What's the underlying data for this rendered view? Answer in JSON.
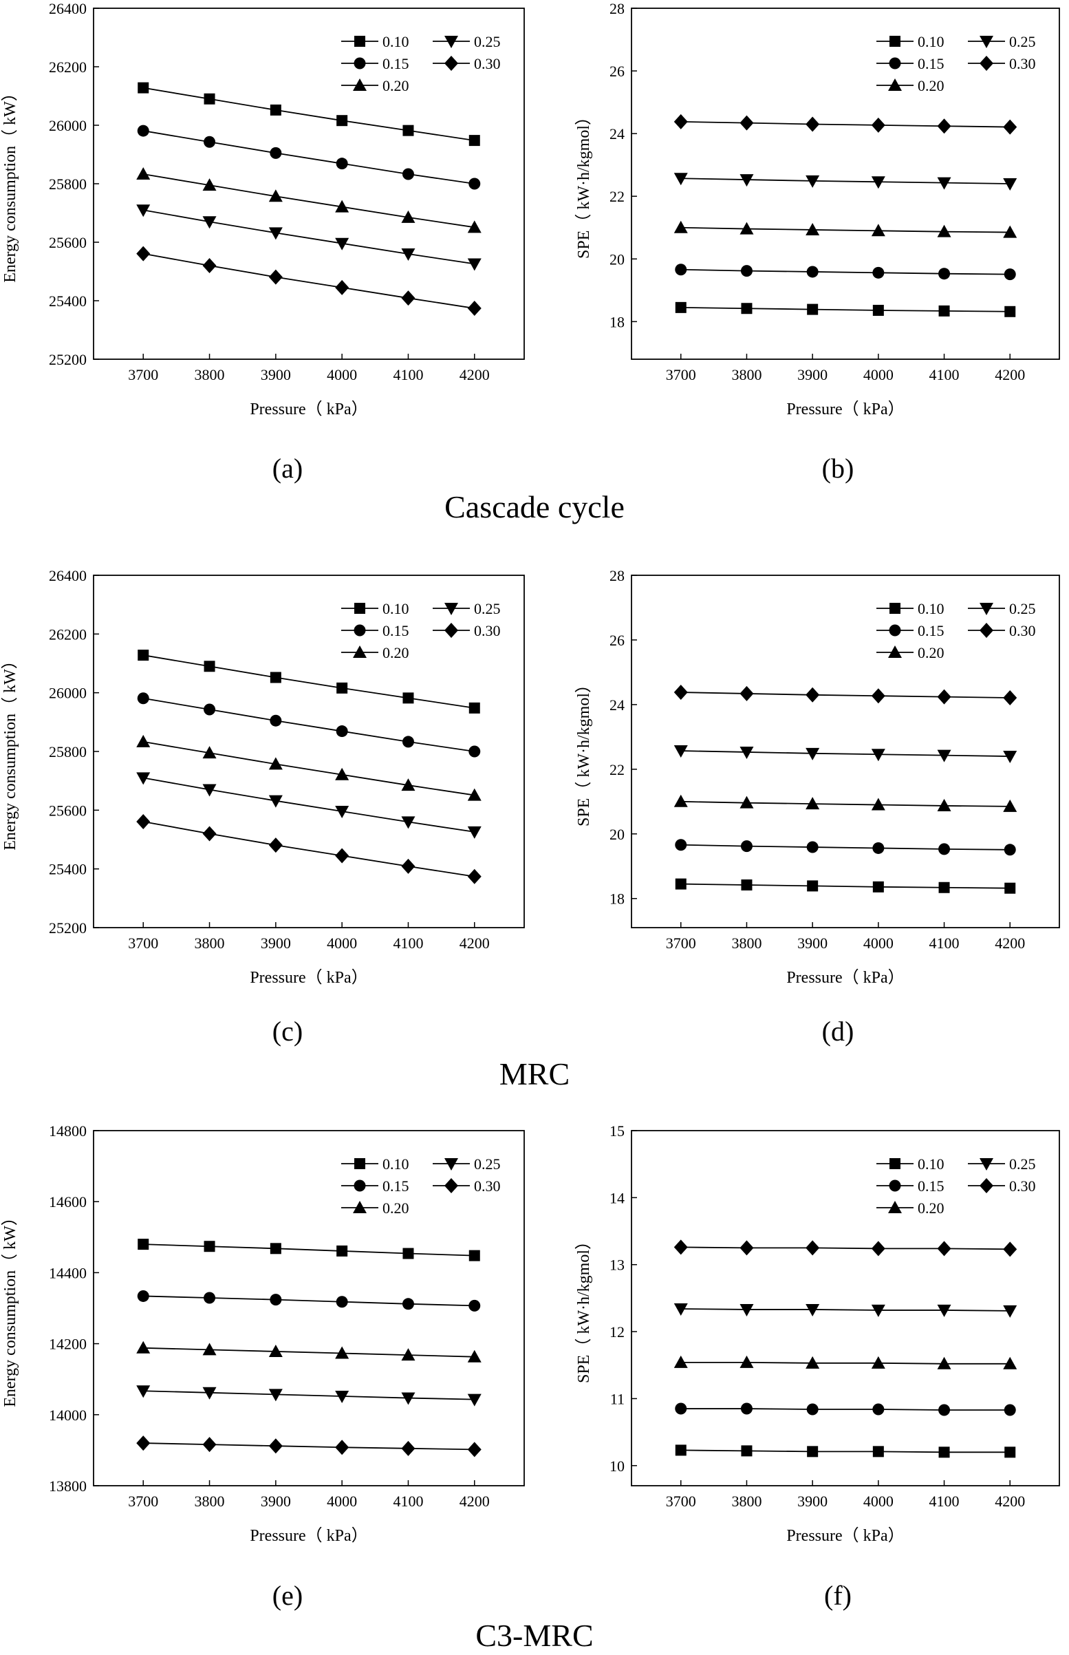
{
  "figure": {
    "groups": [
      {
        "title": "Cascade cycle"
      },
      {
        "title": "MRC"
      },
      {
        "title": "C3-MRC"
      }
    ]
  },
  "chart_data": [
    {
      "panel": "(a)",
      "type": "line",
      "xlabel": "Pressure（ kPa）",
      "ylabel": "Energy consumption（ kW）",
      "xlim": [
        3625,
        4275
      ],
      "ylim": [
        25200,
        26400
      ],
      "xticks": [
        3700,
        3800,
        3900,
        4000,
        4100,
        4200
      ],
      "yticks": [
        25200,
        25400,
        25600,
        25800,
        26000,
        26200,
        26400
      ],
      "legend_position": "top-right",
      "x": [
        3700,
        3800,
        3900,
        4000,
        4100,
        4200
      ],
      "series": [
        {
          "name": "0.10",
          "marker": "square",
          "values": [
            26128,
            26090,
            26052,
            26016,
            25982,
            25948
          ]
        },
        {
          "name": "0.15",
          "marker": "circle",
          "values": [
            25981,
            25943,
            25905,
            25869,
            25833,
            25800
          ]
        },
        {
          "name": "0.20",
          "marker": "triangle-up",
          "values": [
            25833,
            25795,
            25757,
            25721,
            25685,
            25651
          ]
        },
        {
          "name": "0.25",
          "marker": "triangle-down",
          "values": [
            25710,
            25670,
            25632,
            25596,
            25560,
            25526
          ]
        },
        {
          "name": "0.30",
          "marker": "diamond",
          "values": [
            25561,
            25520,
            25481,
            25445,
            25409,
            25374
          ]
        }
      ]
    },
    {
      "panel": "(b)",
      "type": "line",
      "xlabel": "Pressure（ kPa）",
      "ylabel": "SPE（ kW·h/kgmol）",
      "xlim": [
        3625,
        4275
      ],
      "ylim": [
        16.8,
        28
      ],
      "xticks": [
        3700,
        3800,
        3900,
        4000,
        4100,
        4200
      ],
      "yticks": [
        18,
        20,
        22,
        24,
        26,
        28
      ],
      "legend_position": "top-right",
      "x": [
        3700,
        3800,
        3900,
        4000,
        4100,
        4200
      ],
      "series": [
        {
          "name": "0.10",
          "marker": "square",
          "values": [
            18.45,
            18.42,
            18.39,
            18.36,
            18.34,
            18.32
          ]
        },
        {
          "name": "0.15",
          "marker": "circle",
          "values": [
            19.66,
            19.62,
            19.59,
            19.56,
            19.53,
            19.51
          ]
        },
        {
          "name": "0.20",
          "marker": "triangle-up",
          "values": [
            21.0,
            20.96,
            20.93,
            20.9,
            20.87,
            20.85
          ]
        },
        {
          "name": "0.25",
          "marker": "triangle-down",
          "values": [
            22.57,
            22.53,
            22.49,
            22.46,
            22.43,
            22.4
          ]
        },
        {
          "name": "0.30",
          "marker": "diamond",
          "values": [
            24.38,
            24.34,
            24.3,
            24.27,
            24.24,
            24.21
          ]
        }
      ]
    },
    {
      "panel": "(c)",
      "type": "line",
      "xlabel": "Pressure（ kPa）",
      "ylabel": "Energy consumption（ kW）",
      "xlim": [
        3625,
        4275
      ],
      "ylim": [
        25200,
        26400
      ],
      "xticks": [
        3700,
        3800,
        3900,
        4000,
        4100,
        4200
      ],
      "yticks": [
        25200,
        25400,
        25600,
        25800,
        26000,
        26200,
        26400
      ],
      "legend_position": "top-right",
      "x": [
        3700,
        3800,
        3900,
        4000,
        4100,
        4200
      ],
      "series": [
        {
          "name": "0.10",
          "marker": "square",
          "values": [
            26128,
            26090,
            26052,
            26016,
            25982,
            25948
          ]
        },
        {
          "name": "0.15",
          "marker": "circle",
          "values": [
            25981,
            25943,
            25905,
            25869,
            25833,
            25800
          ]
        },
        {
          "name": "0.20",
          "marker": "triangle-up",
          "values": [
            25833,
            25795,
            25757,
            25721,
            25685,
            25651
          ]
        },
        {
          "name": "0.25",
          "marker": "triangle-down",
          "values": [
            25710,
            25670,
            25632,
            25596,
            25560,
            25526
          ]
        },
        {
          "name": "0.30",
          "marker": "diamond",
          "values": [
            25561,
            25520,
            25481,
            25445,
            25409,
            25374
          ]
        }
      ]
    },
    {
      "panel": "(d)",
      "type": "line",
      "xlabel": "Pressure（ kPa）",
      "ylabel": "SPE（ kW·h/kgmol）",
      "xlim": [
        3625,
        4275
      ],
      "ylim": [
        17.1,
        28
      ],
      "xticks": [
        3700,
        3800,
        3900,
        4000,
        4100,
        4200
      ],
      "yticks": [
        18,
        20,
        22,
        24,
        26,
        28
      ],
      "legend_position": "top-right",
      "x": [
        3700,
        3800,
        3900,
        4000,
        4100,
        4200
      ],
      "series": [
        {
          "name": "0.10",
          "marker": "square",
          "values": [
            18.45,
            18.42,
            18.39,
            18.36,
            18.34,
            18.32
          ]
        },
        {
          "name": "0.15",
          "marker": "circle",
          "values": [
            19.66,
            19.62,
            19.59,
            19.56,
            19.53,
            19.51
          ]
        },
        {
          "name": "0.20",
          "marker": "triangle-up",
          "values": [
            21.0,
            20.96,
            20.93,
            20.9,
            20.87,
            20.85
          ]
        },
        {
          "name": "0.25",
          "marker": "triangle-down",
          "values": [
            22.57,
            22.53,
            22.49,
            22.46,
            22.43,
            22.4
          ]
        },
        {
          "name": "0.30",
          "marker": "diamond",
          "values": [
            24.38,
            24.34,
            24.3,
            24.27,
            24.24,
            24.21
          ]
        }
      ]
    },
    {
      "panel": "(e)",
      "type": "line",
      "xlabel": "Pressure（ kPa）",
      "ylabel": "Energy consumption（ kW）",
      "xlim": [
        3625,
        4275
      ],
      "ylim": [
        13800,
        14800
      ],
      "xticks": [
        3700,
        3800,
        3900,
        4000,
        4100,
        4200
      ],
      "yticks": [
        13800,
        14000,
        14200,
        14400,
        14600,
        14800
      ],
      "legend_position": "top-right",
      "x": [
        3700,
        3800,
        3900,
        4000,
        4100,
        4200
      ],
      "series": [
        {
          "name": "0.10",
          "marker": "square",
          "values": [
            14480,
            14474,
            14468,
            14461,
            14454,
            14448
          ]
        },
        {
          "name": "0.15",
          "marker": "circle",
          "values": [
            14334,
            14329,
            14324,
            14318,
            14312,
            14307
          ]
        },
        {
          "name": "0.20",
          "marker": "triangle-up",
          "values": [
            14188,
            14183,
            14178,
            14173,
            14168,
            14163
          ]
        },
        {
          "name": "0.25",
          "marker": "triangle-down",
          "values": [
            14067,
            14062,
            14057,
            14052,
            14047,
            14043
          ]
        },
        {
          "name": "0.30",
          "marker": "diamond",
          "values": [
            13920,
            13916,
            13912,
            13908,
            13905,
            13902
          ]
        }
      ]
    },
    {
      "panel": "(f)",
      "type": "line",
      "xlabel": "Pressure（ kPa）",
      "ylabel": "SPE（ kW·h/kgmol）",
      "xlim": [
        3625,
        4275
      ],
      "ylim": [
        9.7,
        15
      ],
      "xticks": [
        3700,
        3800,
        3900,
        4000,
        4100,
        4200
      ],
      "yticks": [
        10,
        11,
        12,
        13,
        14,
        15
      ],
      "legend_position": "top-right",
      "x": [
        3700,
        3800,
        3900,
        4000,
        4100,
        4200
      ],
      "series": [
        {
          "name": "0.10",
          "marker": "square",
          "values": [
            10.23,
            10.22,
            10.21,
            10.21,
            10.2,
            10.2
          ]
        },
        {
          "name": "0.15",
          "marker": "circle",
          "values": [
            10.85,
            10.85,
            10.84,
            10.84,
            10.83,
            10.83
          ]
        },
        {
          "name": "0.20",
          "marker": "triangle-up",
          "values": [
            11.54,
            11.54,
            11.53,
            11.53,
            11.52,
            11.52
          ]
        },
        {
          "name": "0.25",
          "marker": "triangle-down",
          "values": [
            12.34,
            12.33,
            12.33,
            12.32,
            12.32,
            12.31
          ]
        },
        {
          "name": "0.30",
          "marker": "diamond",
          "values": [
            13.26,
            13.25,
            13.25,
            13.24,
            13.24,
            13.23
          ]
        }
      ]
    }
  ]
}
